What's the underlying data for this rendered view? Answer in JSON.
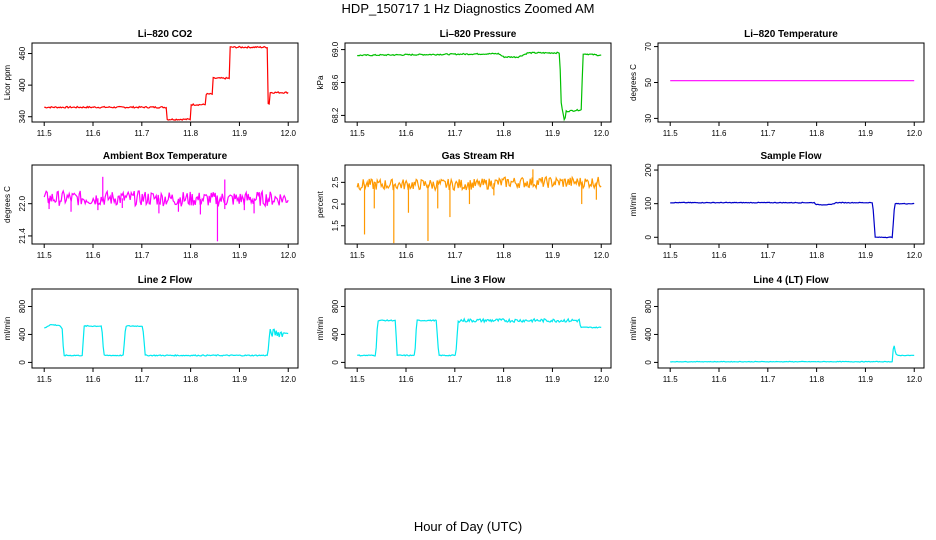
{
  "figure": {
    "title": "HDP_150717  1 Hz Diagnostics Zoomed AM",
    "xlabel": "Hour of Day (UTC)"
  },
  "chart_data": [
    {
      "type": "line",
      "title": "Li–820 CO2",
      "ylabel": "Licor ppm",
      "color": "#ff0000",
      "xlim": [
        11.475,
        12.02
      ],
      "ylim": [
        330,
        480
      ],
      "xticks": [
        11.5,
        11.6,
        11.7,
        11.8,
        11.9,
        12.0
      ],
      "xtick_labels": [
        "11.5",
        "11.6",
        "11.7",
        "11.8",
        "11.9",
        "12.0"
      ],
      "yticks": [
        340,
        400,
        460
      ],
      "ytick_labels": [
        "340",
        "400",
        "460"
      ],
      "noise": 1.5,
      "x": [
        11.5,
        11.752,
        11.752,
        11.8,
        11.8,
        11.83,
        11.83,
        11.845,
        11.845,
        11.88,
        11.88,
        11.958,
        11.958,
        11.962,
        11.962,
        12.0
      ],
      "y": [
        358,
        358,
        335,
        335,
        363,
        363,
        383,
        383,
        413,
        413,
        472,
        472,
        365,
        365,
        386,
        386
      ]
    },
    {
      "type": "line",
      "title": "Li–820 Pressure",
      "ylabel": "kPa",
      "color": "#00c000",
      "xlim": [
        11.475,
        12.02
      ],
      "ylim": [
        68.12,
        69.08
      ],
      "xticks": [
        11.5,
        11.6,
        11.7,
        11.8,
        11.9,
        12.0
      ],
      "xtick_labels": [
        "11.5",
        "11.6",
        "11.7",
        "11.8",
        "11.9",
        "12.0"
      ],
      "yticks": [
        68.2,
        68.6,
        69.0
      ],
      "ytick_labels": [
        "68.2",
        "68.6",
        "69.0"
      ],
      "noise": 0.008,
      "x": [
        11.5,
        11.79,
        11.8,
        11.83,
        11.85,
        11.915,
        11.918,
        11.925,
        11.928,
        11.96,
        11.962,
        12.0
      ],
      "y": [
        68.93,
        68.95,
        68.91,
        68.91,
        68.96,
        68.96,
        68.35,
        68.12,
        68.25,
        68.27,
        68.95,
        68.93
      ]
    },
    {
      "type": "line",
      "title": "Li–820 Temperature",
      "ylabel": "degrees C",
      "color": "#ff00ff",
      "xlim": [
        11.475,
        12.02
      ],
      "ylim": [
        28,
        72
      ],
      "xticks": [
        11.5,
        11.6,
        11.7,
        11.8,
        11.9,
        12.0
      ],
      "xtick_labels": [
        "11.5",
        "11.6",
        "11.7",
        "11.8",
        "11.9",
        "12.0"
      ],
      "yticks": [
        30,
        50,
        70
      ],
      "ytick_labels": [
        "30",
        "50",
        "70"
      ],
      "noise": 0,
      "x": [
        11.5,
        12.0
      ],
      "y": [
        51,
        51
      ]
    },
    {
      "type": "line",
      "title": "Ambient Box Temperature",
      "ylabel": "degrees C",
      "color": "#ff00ff",
      "xlim": [
        11.475,
        12.02
      ],
      "ylim": [
        21.25,
        22.72
      ],
      "xticks": [
        11.5,
        11.6,
        11.7,
        11.8,
        11.9,
        12.0
      ],
      "xtick_labels": [
        "11.5",
        "11.6",
        "11.7",
        "11.8",
        "11.9",
        "12.0"
      ],
      "yticks": [
        21.4,
        22.0
      ],
      "ytick_labels": [
        "21.4",
        "22.0"
      ],
      "noise": 0.14,
      "x": [
        11.5,
        11.72,
        11.85,
        12.0
      ],
      "y": [
        22.1,
        22.1,
        22.08,
        22.1
      ],
      "spikes": [
        [
          11.51,
          21.9
        ],
        [
          11.555,
          21.85
        ],
        [
          11.61,
          21.88
        ],
        [
          11.66,
          21.92
        ],
        [
          11.735,
          21.82
        ],
        [
          11.775,
          21.85
        ],
        [
          11.82,
          21.8
        ],
        [
          11.855,
          21.3
        ],
        [
          11.87,
          21.9
        ],
        [
          11.91,
          21.88
        ],
        [
          11.93,
          21.82
        ],
        [
          11.62,
          22.5
        ],
        [
          11.87,
          22.45
        ]
      ]
    },
    {
      "type": "line",
      "title": "Gas Stream RH",
      "ylabel": "percent",
      "color": "#ff9900",
      "xlim": [
        11.475,
        12.02
      ],
      "ylim": [
        1.08,
        2.9
      ],
      "xticks": [
        11.5,
        11.6,
        11.7,
        11.8,
        11.9,
        12.0
      ],
      "xtick_labels": [
        "11.5",
        "11.6",
        "11.7",
        "11.8",
        "11.9",
        "12.0"
      ],
      "yticks": [
        1.5,
        2.0,
        2.5
      ],
      "ytick_labels": [
        "1.5",
        "2.0",
        "2.5"
      ],
      "noise": 0.13,
      "x": [
        11.5,
        11.75,
        11.8,
        12.0
      ],
      "y": [
        2.45,
        2.45,
        2.5,
        2.5
      ],
      "spikes": [
        [
          11.515,
          1.3
        ],
        [
          11.535,
          1.9
        ],
        [
          11.575,
          1.1
        ],
        [
          11.605,
          1.8
        ],
        [
          11.645,
          1.15
        ],
        [
          11.665,
          1.9
        ],
        [
          11.69,
          1.7
        ],
        [
          11.73,
          2.0
        ],
        [
          11.78,
          2.2
        ],
        [
          11.96,
          2.0
        ],
        [
          11.99,
          2.1
        ],
        [
          11.86,
          2.8
        ]
      ]
    },
    {
      "type": "line",
      "title": "Sample Flow",
      "ylabel": "ml/min",
      "color": "#0000c8",
      "xlim": [
        11.475,
        12.02
      ],
      "ylim": [
        -20,
        215
      ],
      "xticks": [
        11.5,
        11.6,
        11.7,
        11.8,
        11.9,
        12.0
      ],
      "xtick_labels": [
        "11.5",
        "11.6",
        "11.7",
        "11.8",
        "11.9",
        "12.0"
      ],
      "yticks": [
        0,
        100,
        200
      ],
      "ytick_labels": [
        "0",
        "100",
        "200"
      ],
      "noise": 1,
      "x": [
        11.5,
        11.795,
        11.8,
        11.83,
        11.84,
        11.915,
        11.92,
        11.955,
        11.96,
        12.0
      ],
      "y": [
        103,
        103,
        97,
        97,
        103,
        103,
        0,
        0,
        100,
        100
      ]
    },
    {
      "type": "line",
      "title": "Line 2 Flow",
      "ylabel": "ml/min",
      "color": "#00e8f0",
      "xlim": [
        11.475,
        12.02
      ],
      "ylim": [
        -80,
        1050
      ],
      "xticks": [
        11.5,
        11.6,
        11.7,
        11.8,
        11.9,
        12.0
      ],
      "xtick_labels": [
        "11.5",
        "11.6",
        "11.7",
        "11.8",
        "11.9",
        "12.0"
      ],
      "yticks": [
        0,
        400,
        800
      ],
      "ytick_labels": [
        "0",
        "400",
        "800"
      ],
      "noise": 8,
      "x": [
        11.5,
        11.512,
        11.532,
        11.537,
        11.54,
        11.578,
        11.582,
        11.618,
        11.622,
        11.662,
        11.667,
        11.702,
        11.707,
        11.958,
        11.962,
        12.0
      ],
      "y": [
        490,
        540,
        530,
        470,
        100,
        100,
        520,
        520,
        100,
        100,
        520,
        520,
        100,
        100,
        420,
        420
      ],
      "band": [
        11.962,
        11.99,
        60
      ]
    },
    {
      "type": "line",
      "title": "Line 3 Flow",
      "ylabel": "ml/min",
      "color": "#00e8f0",
      "xlim": [
        11.475,
        12.02
      ],
      "ylim": [
        -80,
        1050
      ],
      "xticks": [
        11.5,
        11.6,
        11.7,
        11.8,
        11.9,
        12.0
      ],
      "xtick_labels": [
        "11.5",
        "11.6",
        "11.7",
        "11.8",
        "11.9",
        "12.0"
      ],
      "yticks": [
        0,
        400,
        800
      ],
      "ytick_labels": [
        "0",
        "400",
        "800"
      ],
      "noise": 8,
      "x": [
        11.5,
        11.538,
        11.542,
        11.578,
        11.582,
        11.618,
        11.622,
        11.662,
        11.667,
        11.702,
        11.707,
        11.955,
        11.958,
        12.0
      ],
      "y": [
        100,
        100,
        600,
        600,
        100,
        100,
        600,
        600,
        100,
        100,
        600,
        600,
        500,
        500
      ],
      "band": [
        11.707,
        11.955,
        25
      ]
    },
    {
      "type": "line",
      "title": "Line 4 (LT) Flow",
      "ylabel": "ml/min",
      "color": "#00e8f0",
      "xlim": [
        11.475,
        12.02
      ],
      "ylim": [
        -80,
        1050
      ],
      "xticks": [
        11.5,
        11.6,
        11.7,
        11.8,
        11.9,
        12.0
      ],
      "xtick_labels": [
        "11.5",
        "11.6",
        "11.7",
        "11.8",
        "11.9",
        "12.0"
      ],
      "yticks": [
        0,
        400,
        800
      ],
      "ytick_labels": [
        "0",
        "400",
        "800"
      ],
      "noise": 4,
      "x": [
        11.5,
        11.955,
        11.958,
        11.962,
        11.966,
        12.0
      ],
      "y": [
        10,
        10,
        280,
        120,
        100,
        100
      ]
    }
  ]
}
